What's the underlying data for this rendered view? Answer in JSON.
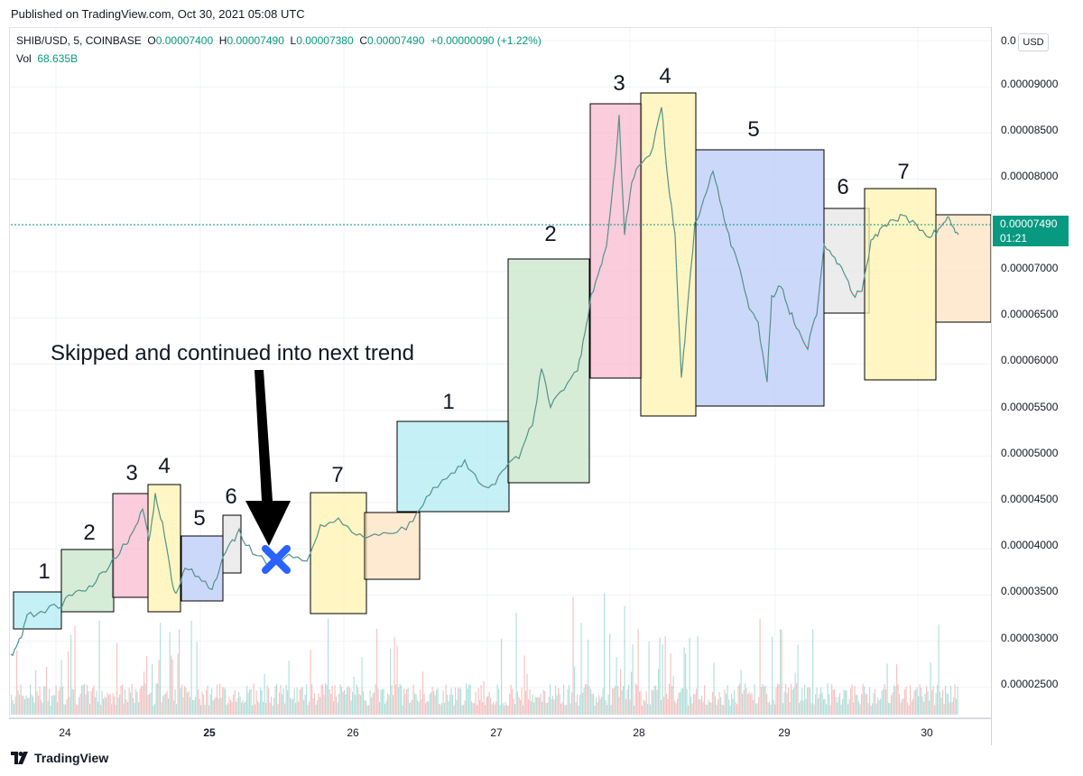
{
  "header": {
    "published": "Published on TradingView.com, Oct 30, 2021 05:08 UTC"
  },
  "legend": {
    "symbol": "SHIB/USD, 5, COINBASE",
    "o_label": "O",
    "o_value": "0.00007400",
    "h_label": "H",
    "h_value": "0.00007490",
    "l_label": "L",
    "l_value": "0.00007380",
    "c_label": "C",
    "c_value": "0.00007490",
    "change": "+0.00000090 (+1.22%)",
    "vol_label": "Vol",
    "vol_value": "68.635B"
  },
  "price_axis": {
    "currency": "USD",
    "labels": [
      "0.00009000",
      "0.00008500",
      "0.00008000",
      "0.00007000",
      "0.00006500",
      "0.00006000",
      "0.00005500",
      "0.00005000",
      "0.00004500",
      "0.00004000",
      "0.00003500",
      "0.00003000",
      "0.00002500"
    ],
    "current_price": "0.00007490",
    "countdown": "01:21"
  },
  "time_axis": {
    "labels": [
      "24",
      "25",
      "26",
      "27",
      "28",
      "29",
      "30"
    ],
    "bold": [
      "25"
    ]
  },
  "annotation": {
    "text": "Skipped and continued into next trend"
  },
  "wave_boxes": [
    {
      "label": "1",
      "fill": "#b2ebf2"
    },
    {
      "label": "2",
      "fill": "#c8e6c9"
    },
    {
      "label": "3",
      "fill": "#f8bbd0"
    },
    {
      "label": "4",
      "fill": "#fff3b0"
    },
    {
      "label": "5",
      "fill": "#bbcbf8"
    },
    {
      "label": "6",
      "fill": "#e6e6e6"
    },
    {
      "label": "7",
      "fill": "#fff3b0"
    },
    {
      "label": "",
      "fill": "#fde3c2"
    },
    {
      "label": "1",
      "fill": "#b2ebf2"
    },
    {
      "label": "2",
      "fill": "#c8e6c9"
    },
    {
      "label": "3",
      "fill": "#f8bbd0"
    },
    {
      "label": "4",
      "fill": "#fff3b0"
    },
    {
      "label": "5",
      "fill": "#bbcbf8"
    },
    {
      "label": "6",
      "fill": "#e6e6e6"
    },
    {
      "label": "7",
      "fill": "#fff3b0"
    },
    {
      "label": "",
      "fill": "#fde3c2"
    }
  ],
  "colors": {
    "up": "#26a69a",
    "down": "#ef5350",
    "accent": "#089981",
    "cross": "#2962ff"
  },
  "footer": {
    "brand": "TradingView",
    "logo_icon": "tradingview-logo-icon"
  }
}
